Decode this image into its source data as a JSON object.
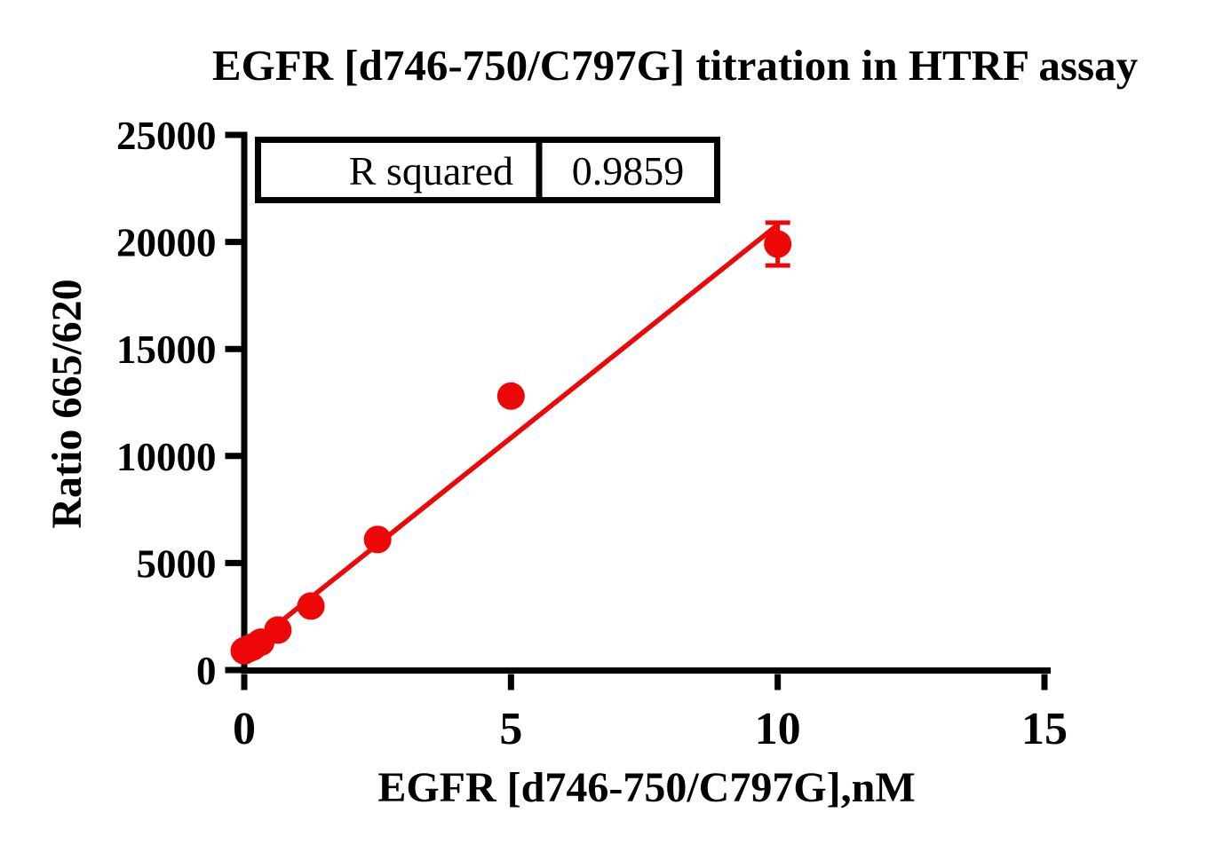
{
  "chart_data": {
    "type": "scatter",
    "title": "EGFR [d746-750/C797G] titration in HTRF assay",
    "xlabel": "EGFR [d746-750/C797G],nM",
    "ylabel": "Ratio 665/620",
    "xlim": [
      0,
      15
    ],
    "ylim": [
      0,
      25000
    ],
    "x_ticks": [
      0,
      5,
      10,
      15
    ],
    "x_tick_labels": [
      "0",
      "5",
      "10",
      "15"
    ],
    "y_ticks": [
      0,
      5000,
      10000,
      15000,
      20000,
      25000
    ],
    "y_tick_labels": [
      "0",
      "5000",
      "10000",
      "15000",
      "20000",
      "25000"
    ],
    "grid": false,
    "legend": null,
    "marker_style": "filled-circle",
    "marker_color": "#ee0707",
    "axis_color": "#000000",
    "points": [
      {
        "x": 0,
        "y": 900
      },
      {
        "x": 0.08,
        "y": 1000
      },
      {
        "x": 0.16,
        "y": 1080
      },
      {
        "x": 0.31,
        "y": 1300
      },
      {
        "x": 0.63,
        "y": 1870
      },
      {
        "x": 1.25,
        "y": 2990
      },
      {
        "x": 2.5,
        "y": 6100
      },
      {
        "x": 5,
        "y": 12800
      },
      {
        "x": 10,
        "y": 19900,
        "y_err": 1000
      }
    ],
    "fit_line": {
      "type": "linear",
      "slope": 1990,
      "intercept": 900,
      "x_start": 0,
      "x_end": 10
    },
    "annotation": {
      "label": "R squared",
      "value": "0.9859"
    }
  }
}
